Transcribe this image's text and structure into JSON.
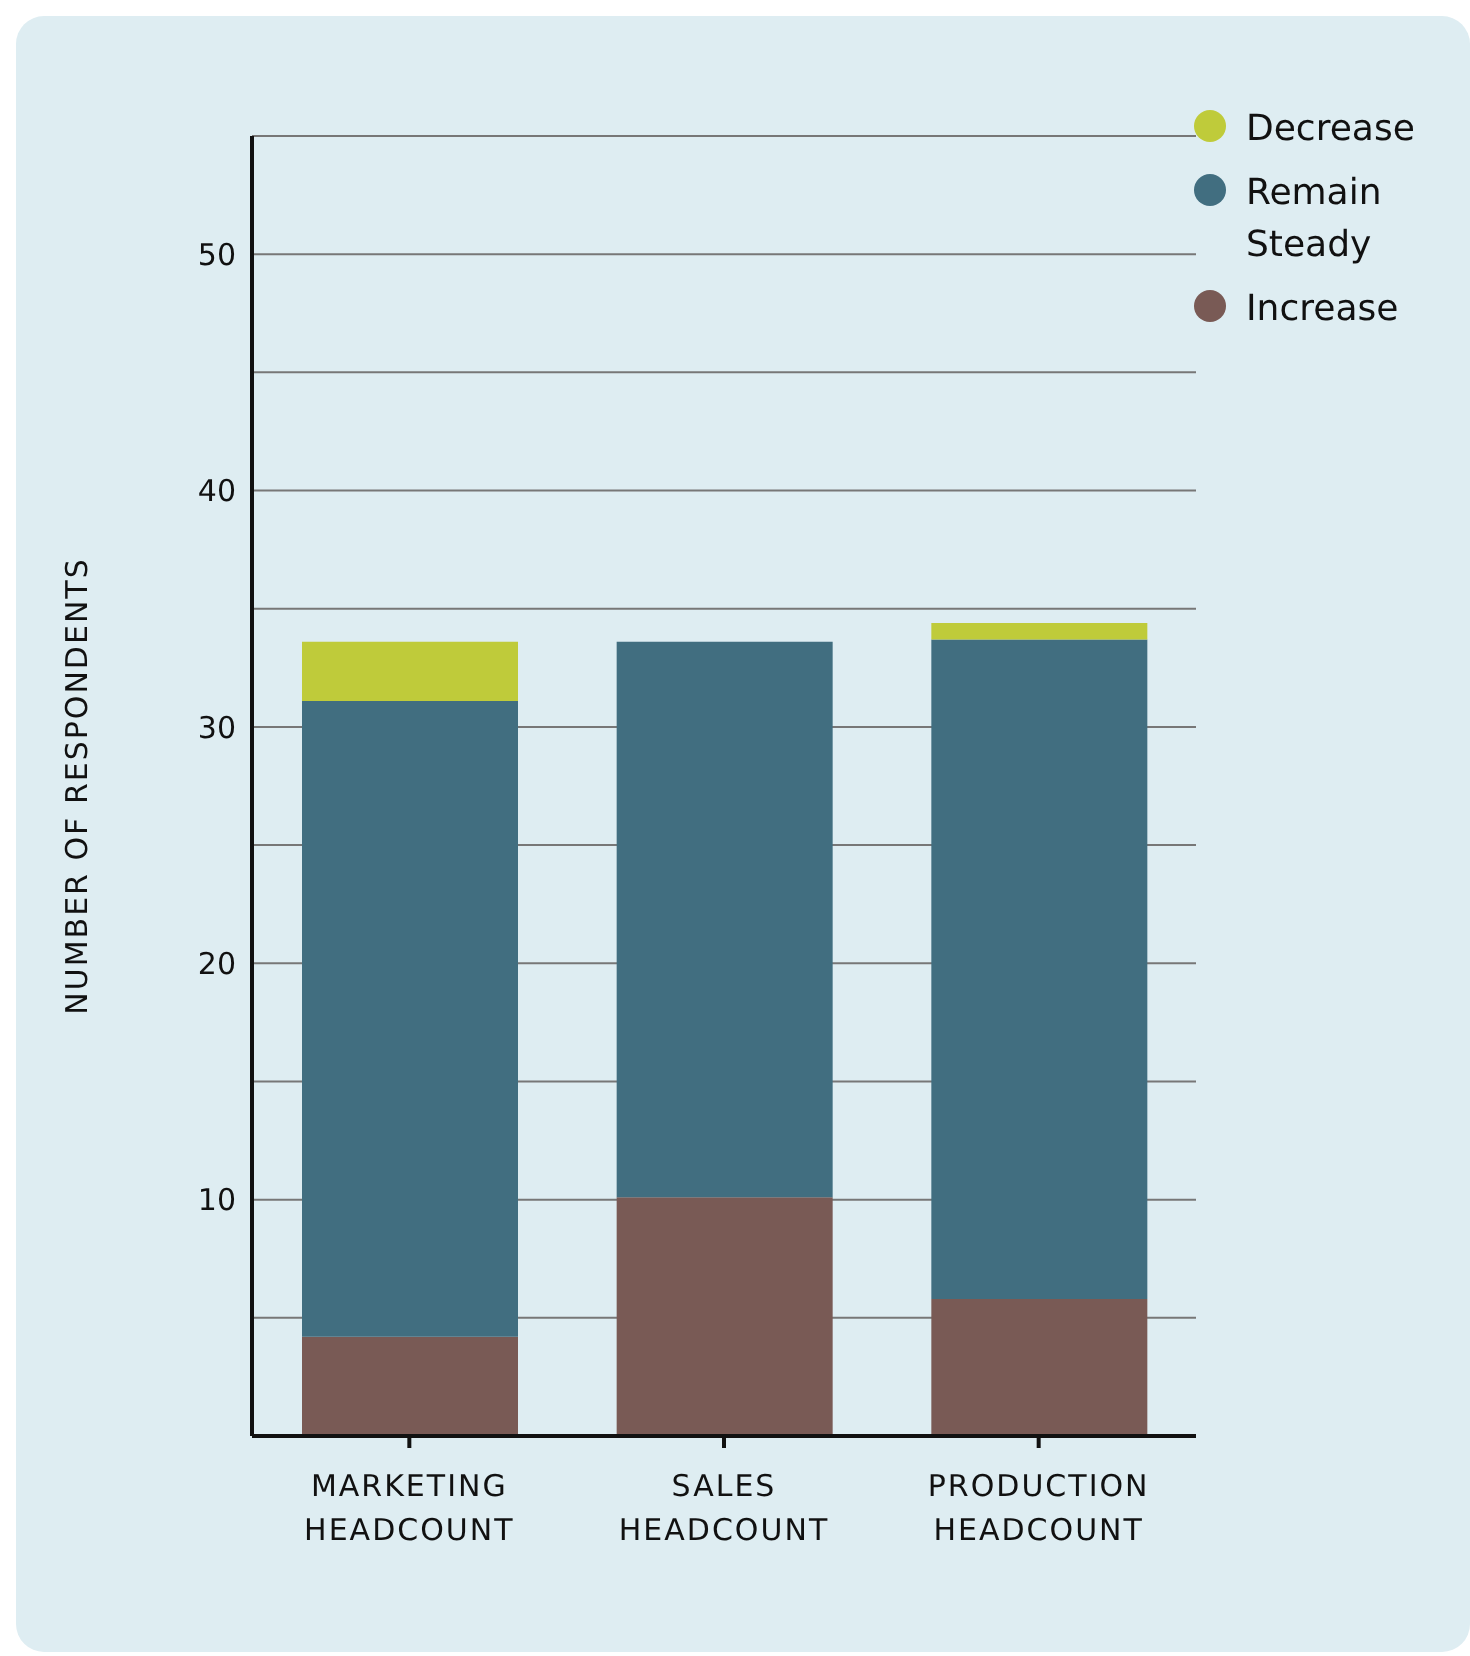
{
  "chart_data": {
    "type": "bar",
    "stacked": true,
    "ylabel": "NUMBER OF RESPONDENTS",
    "categories": [
      "MARKETING HEADCOUNT",
      "SALES HEADCOUNT",
      "PRODUCTION HEADCOUNT"
    ],
    "series": [
      {
        "name": "Increase",
        "color": "#795a55",
        "values": [
          4.2,
          10.1,
          5.8
        ]
      },
      {
        "name": "Remain Steady",
        "color": "#416e80",
        "values": [
          26.9,
          23.5,
          27.9
        ]
      },
      {
        "name": "Decrease",
        "color": "#bfcb3a",
        "values": [
          2.5,
          0,
          0.7
        ]
      }
    ],
    "ylim": [
      0,
      55
    ],
    "yticks": [
      {
        "value": 0,
        "label": null
      },
      {
        "value": 5,
        "label": null
      },
      10,
      {
        "value": 15,
        "label": null
      },
      20,
      {
        "value": 25,
        "label": null
      },
      30,
      {
        "value": 35,
        "label": null
      },
      40,
      {
        "value": 45,
        "label": null
      },
      50,
      {
        "value": 55,
        "label": null
      }
    ],
    "grid": "y",
    "legend": "top right"
  }
}
